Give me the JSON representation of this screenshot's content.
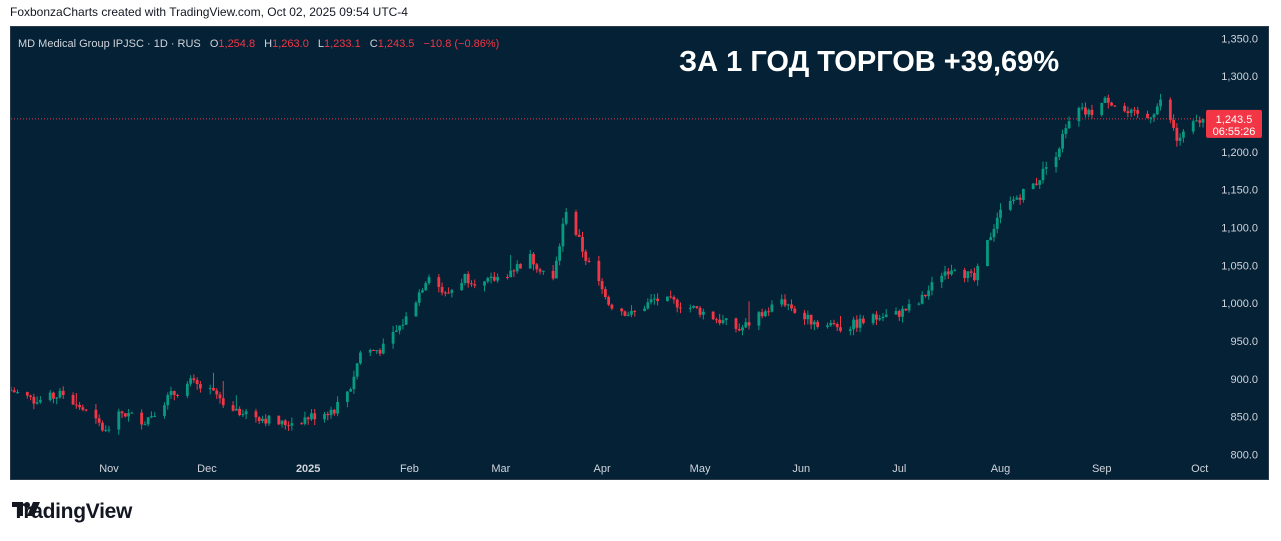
{
  "header": {
    "attribution": "FoxbonzaCharts created with TradingView.com, Oct 02, 2025 09:54 UTC-4"
  },
  "legend": {
    "symbol": "MD Medical Group IPJSC · 1D · RUS",
    "o_label": "O",
    "o_value": "1,254.8",
    "h_label": "H",
    "h_value": "1,263.0",
    "l_label": "L",
    "l_value": "1,233.1",
    "c_label": "C",
    "c_value": "1,243.5",
    "change": "−10.8 (−0.86%)"
  },
  "headline": "ЗА 1 ГОД ТОРГОВ +39,69%",
  "price_tag": {
    "price": "1,243.5",
    "countdown": "06:55:26"
  },
  "footer": {
    "brand": "TradingView"
  },
  "colors": {
    "background": "#042135",
    "up": "#089981",
    "down": "#f23645",
    "axis_text": "#d1d4dc"
  },
  "chart_data": {
    "type": "candlestick",
    "y_unit": "RUB",
    "ylim": [
      765,
      1365
    ],
    "y_ticks": [
      "1,350.0",
      "1,300.0",
      "1,250.0",
      "1,200.0",
      "1,150.0",
      "1,100.0",
      "1,050.0",
      "1,000.0",
      "950.0",
      "900.0",
      "850.0",
      "800.0"
    ],
    "y_tick_values": [
      1350,
      1300,
      1250,
      1200,
      1150,
      1100,
      1050,
      1000,
      950,
      900,
      850,
      800
    ],
    "x_labels": [
      "Nov",
      "Dec",
      "2025",
      "Feb",
      "Mar",
      "Apr",
      "May",
      "Jun",
      "Jul",
      "Aug",
      "Sep",
      "Oct"
    ],
    "x_label_dates": [
      "2024-11-01",
      "2024-12-01",
      "2025-01-01",
      "2025-02-01",
      "2025-03-01",
      "2025-04-01",
      "2025-05-01",
      "2025-06-01",
      "2025-07-01",
      "2025-08-01",
      "2025-09-01",
      "2025-10-01"
    ],
    "x_range": [
      "2024-10-02",
      "2025-10-02"
    ],
    "last_price": 1243.5,
    "close_path": [
      [
        "2024-10-02",
        885
      ],
      [
        "2024-10-10",
        870
      ],
      [
        "2024-10-18",
        880
      ],
      [
        "2024-10-24",
        860
      ],
      [
        "2024-10-31",
        830
      ],
      [
        "2024-11-05",
        855
      ],
      [
        "2024-11-12",
        845
      ],
      [
        "2024-11-19",
        875
      ],
      [
        "2024-11-26",
        895
      ],
      [
        "2024-12-03",
        880
      ],
      [
        "2024-12-10",
        860
      ],
      [
        "2024-12-17",
        850
      ],
      [
        "2024-12-24",
        840
      ],
      [
        "2024-12-29",
        845
      ],
      [
        "2025-01-09",
        860
      ],
      [
        "2025-01-14",
        890
      ],
      [
        "2025-01-17",
        935
      ],
      [
        "2025-01-24",
        940
      ],
      [
        "2025-01-31",
        980
      ],
      [
        "2025-02-07",
        1040
      ],
      [
        "2025-02-12",
        1010
      ],
      [
        "2025-02-18",
        1035
      ],
      [
        "2025-02-24",
        1025
      ],
      [
        "2025-03-03",
        1040
      ],
      [
        "2025-03-10",
        1060
      ],
      [
        "2025-03-17",
        1030
      ],
      [
        "2025-03-21",
        1125
      ],
      [
        "2025-03-27",
        1060
      ],
      [
        "2025-04-03",
        1000
      ],
      [
        "2025-04-10",
        985
      ],
      [
        "2025-04-17",
        1005
      ],
      [
        "2025-04-24",
        1000
      ],
      [
        "2025-05-01",
        990
      ],
      [
        "2025-05-13",
        965
      ],
      [
        "2025-05-20",
        985
      ],
      [
        "2025-05-26",
        1005
      ],
      [
        "2025-06-02",
        980
      ],
      [
        "2025-06-09",
        970
      ],
      [
        "2025-06-16",
        970
      ],
      [
        "2025-06-23",
        980
      ],
      [
        "2025-06-30",
        985
      ],
      [
        "2025-07-07",
        1000
      ],
      [
        "2025-07-14",
        1040
      ],
      [
        "2025-07-18",
        1050
      ],
      [
        "2025-07-24",
        1030
      ],
      [
        "2025-07-31",
        1115
      ],
      [
        "2025-08-06",
        1140
      ],
      [
        "2025-08-12",
        1160
      ],
      [
        "2025-08-18",
        1200
      ],
      [
        "2025-08-24",
        1255
      ],
      [
        "2025-08-28",
        1250
      ],
      [
        "2025-09-03",
        1270
      ],
      [
        "2025-09-09",
        1250
      ],
      [
        "2025-09-15",
        1245
      ],
      [
        "2025-09-20",
        1270
      ],
      [
        "2025-09-24",
        1215
      ],
      [
        "2025-09-29",
        1235
      ],
      [
        "2025-10-02",
        1243.5
      ]
    ]
  }
}
